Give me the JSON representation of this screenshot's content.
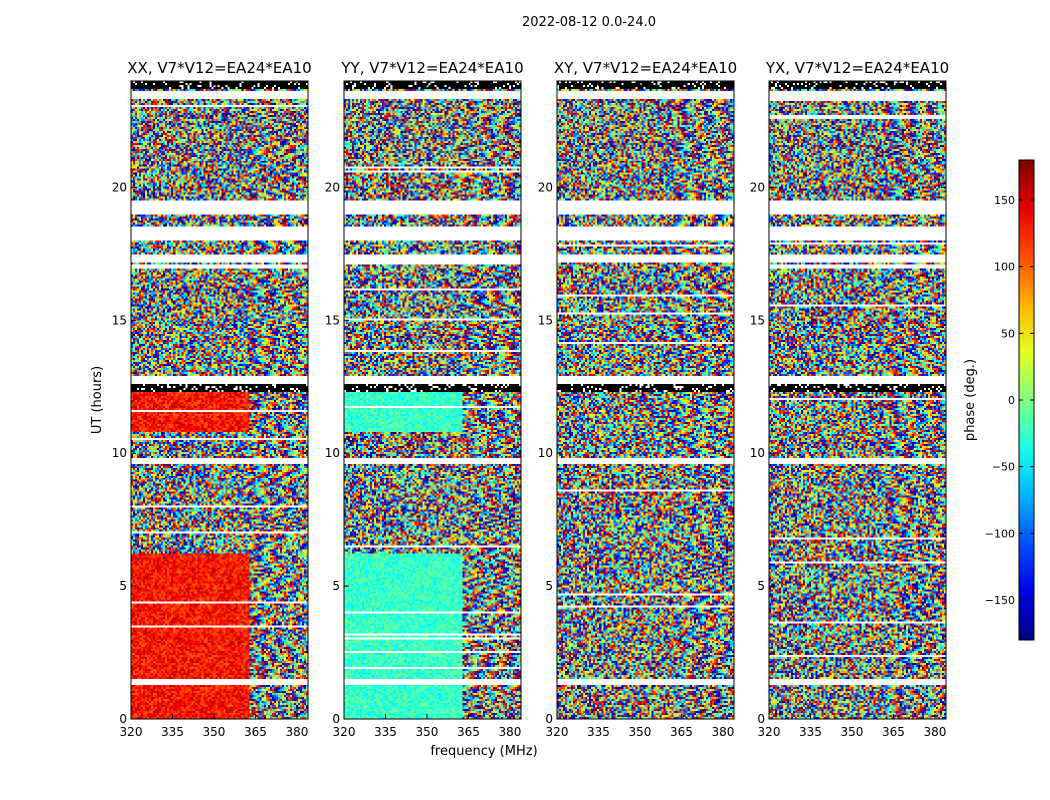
{
  "chart_data": {
    "type": "heatmap",
    "suptitle": "2022-08-12 0.0-24.0",
    "xlabel": "frequency (MHz)",
    "ylabel": "UT (hours)",
    "xlim": [
      320,
      384
    ],
    "ylim": [
      0,
      24
    ],
    "xticks": [
      320,
      335,
      350,
      365,
      380
    ],
    "yticks": [
      0,
      5,
      10,
      15,
      20
    ],
    "panels": [
      {
        "name": "xx",
        "title": "XX, V7*V12=EA24*EA10",
        "mode": "xx"
      },
      {
        "name": "yy",
        "title": "YY, V7*V12=EA24*EA10",
        "mode": "yy"
      },
      {
        "name": "xy",
        "title": "XY, V7*V12=EA24*EA10",
        "mode": "noise"
      },
      {
        "name": "yx",
        "title": "YX, V7*V12=EA24*EA10",
        "mode": "noise"
      }
    ],
    "colorbar": {
      "label": "phase (deg.)",
      "range": [
        -180,
        180
      ],
      "ticks": [
        -150,
        -100,
        -50,
        0,
        50,
        100,
        150
      ],
      "cmap": "jet"
    },
    "flagged_hours": [
      [
        23.3,
        23.6
      ],
      [
        19.0,
        19.5
      ],
      [
        18.0,
        18.5
      ],
      [
        17.2,
        17.5
      ],
      [
        12.5,
        12.9
      ],
      [
        9.6,
        9.8
      ],
      [
        1.3,
        1.5
      ]
    ],
    "dark_hours": [
      [
        23.7,
        24.0
      ],
      [
        12.3,
        12.6
      ]
    ]
  }
}
